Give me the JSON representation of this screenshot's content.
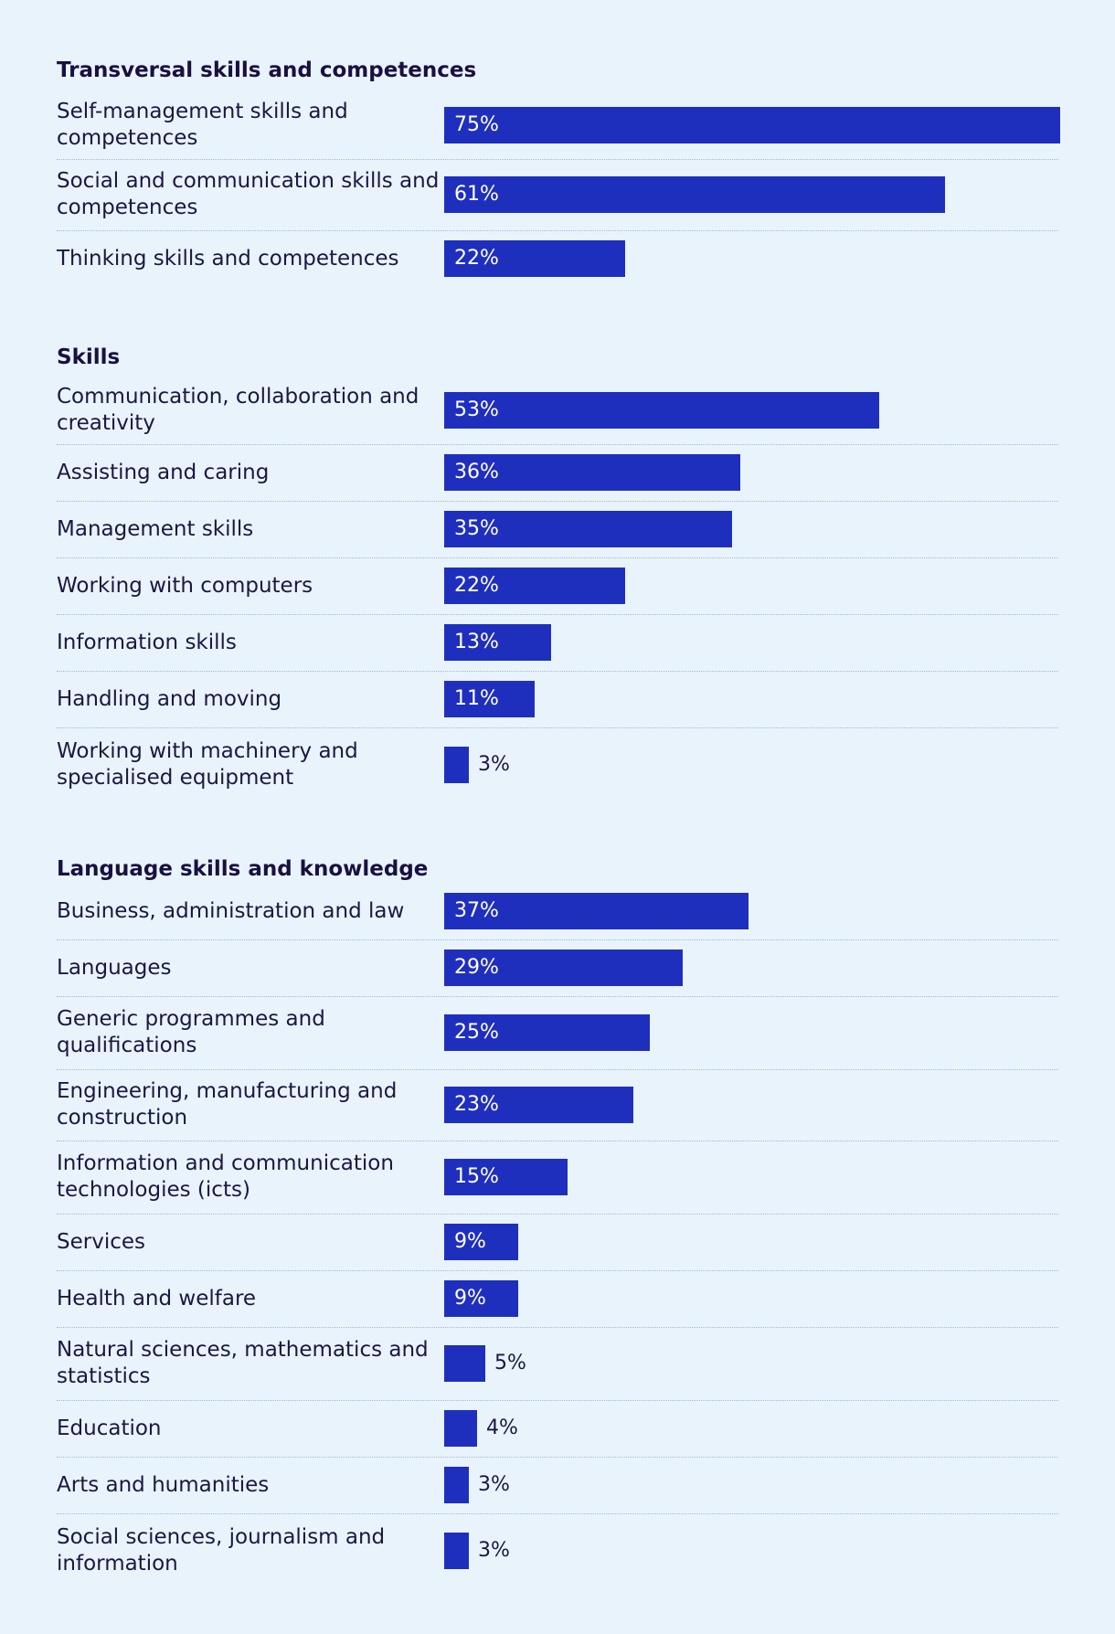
{
  "chart_data": {
    "type": "bar",
    "orientation": "horizontal",
    "unit": "%",
    "xlim": [
      0,
      75
    ],
    "groups": [
      {
        "title": "Transversal skills and competences",
        "categories": [
          "Self-management skills and competences",
          "Social and communication skills and competences",
          "Thinking skills and competences"
        ],
        "values": [
          75,
          61,
          22
        ],
        "labels": [
          "75%",
          "61%",
          "22%"
        ]
      },
      {
        "title": "Skills",
        "categories": [
          "Communication, collaboration and creativity",
          "Assisting and caring",
          "Management skills",
          "Working with computers",
          "Information skills",
          "Handling and moving",
          "Working with machinery and specialised equipment"
        ],
        "values": [
          53,
          36,
          35,
          22,
          13,
          11,
          3
        ],
        "labels": [
          "53%",
          "36%",
          "35%",
          "22%",
          "13%",
          "11%",
          "3%"
        ]
      },
      {
        "title": "Language skills and knowledge",
        "categories": [
          "Business, administration and law",
          "Languages",
          "Generic programmes and qualifications",
          "Engineering, manufacturing and construction",
          "Information and communication technologies (icts)",
          "Services",
          "Health and welfare",
          "Natural sciences, mathematics and statistics",
          "Education",
          "Arts and humanities",
          "Social sciences, journalism and information"
        ],
        "values": [
          37,
          29,
          25,
          23,
          15,
          9,
          9,
          5,
          4,
          3,
          3
        ],
        "labels": [
          "37%",
          "29%",
          "25%",
          "23%",
          "15%",
          "9%",
          "9%",
          "5%",
          "4%",
          "3%",
          "3%"
        ]
      }
    ],
    "colors": {
      "bar": "#1f2fbd",
      "background": "#e8f3fc",
      "text": "#1c1740"
    }
  }
}
